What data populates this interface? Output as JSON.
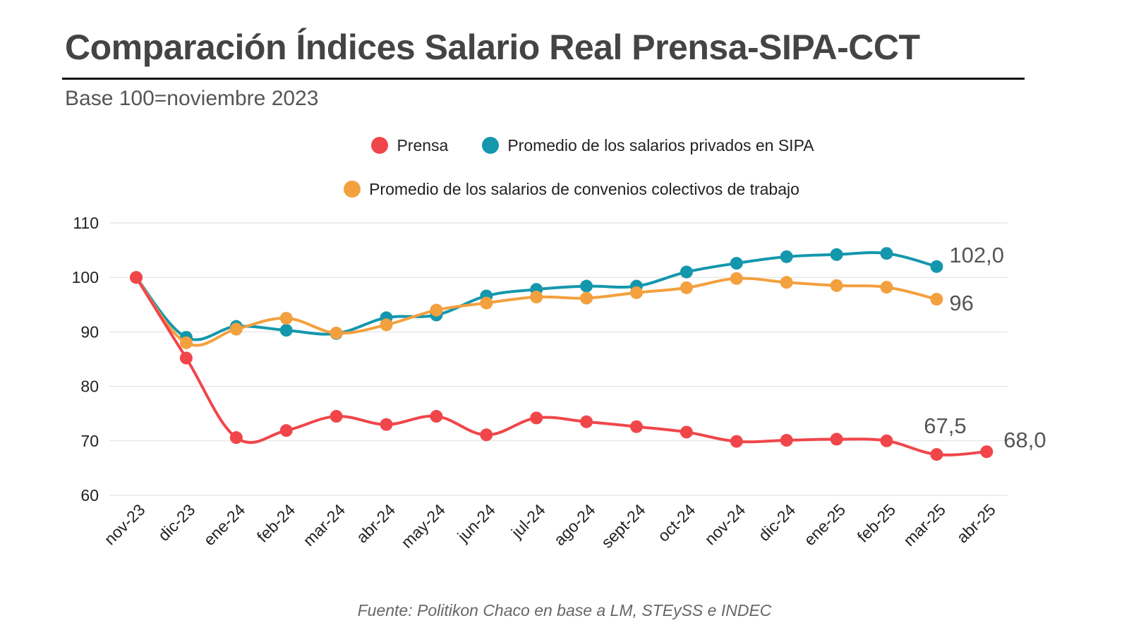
{
  "header": {
    "title": "Comparación Índices Salario Real Prensa-SIPA-CCT",
    "subtitle": "Base 100=noviembre 2023"
  },
  "footer": {
    "source": "Fuente: Politikon Chaco en base a LM, STEySS e INDEC"
  },
  "chart_data": {
    "type": "line",
    "title": "Comparación Índices Salario Real Prensa-SIPA-CCT",
    "subtitle": "Base 100=noviembre 2023",
    "categories": [
      "nov-23",
      "dic-23",
      "ene-24",
      "feb-24",
      "mar-24",
      "abr-24",
      "may-24",
      "jun-24",
      "jul-24",
      "ago-24",
      "sept-24",
      "oct-24",
      "nov-24",
      "dic-24",
      "ene-25",
      "feb-25",
      "mar-25",
      "abr-25"
    ],
    "ylim": [
      60,
      110
    ],
    "yticks": [
      60,
      70,
      80,
      90,
      100,
      110
    ],
    "grid": true,
    "legend_position": "top",
    "series": [
      {
        "name": "Prensa",
        "color": "#f0464a",
        "values": [
          100,
          85.2,
          70.6,
          71.9,
          74.5,
          73.0,
          74.5,
          71.1,
          74.2,
          73.5,
          72.6,
          71.6,
          69.9,
          70.1,
          70.3,
          70.0,
          67.5,
          68.0
        ]
      },
      {
        "name": "Promedio de los salarios privados en SIPA",
        "color": "#1497ac",
        "values": [
          100,
          89.0,
          91.0,
          90.3,
          89.7,
          92.6,
          93.1,
          96.6,
          97.8,
          98.4,
          98.4,
          101.0,
          102.6,
          103.8,
          104.2,
          104.4,
          102.0,
          null
        ]
      },
      {
        "name": "Promedio de los salarios de convenios colectivos de trabajo",
        "color": "#f3a03e",
        "values": [
          100,
          88.0,
          90.5,
          92.5,
          89.8,
          91.3,
          94.0,
          95.3,
          96.4,
          96.2,
          97.2,
          98.1,
          99.8,
          99.1,
          98.5,
          98.2,
          96.0,
          null
        ]
      }
    ],
    "end_labels": [
      {
        "series": 1,
        "index": 16,
        "text": "102,0"
      },
      {
        "series": 2,
        "index": 16,
        "text": "96"
      },
      {
        "series": 0,
        "index": 16,
        "text": "67,5"
      },
      {
        "series": 0,
        "index": 17,
        "text": "68,0"
      }
    ]
  }
}
